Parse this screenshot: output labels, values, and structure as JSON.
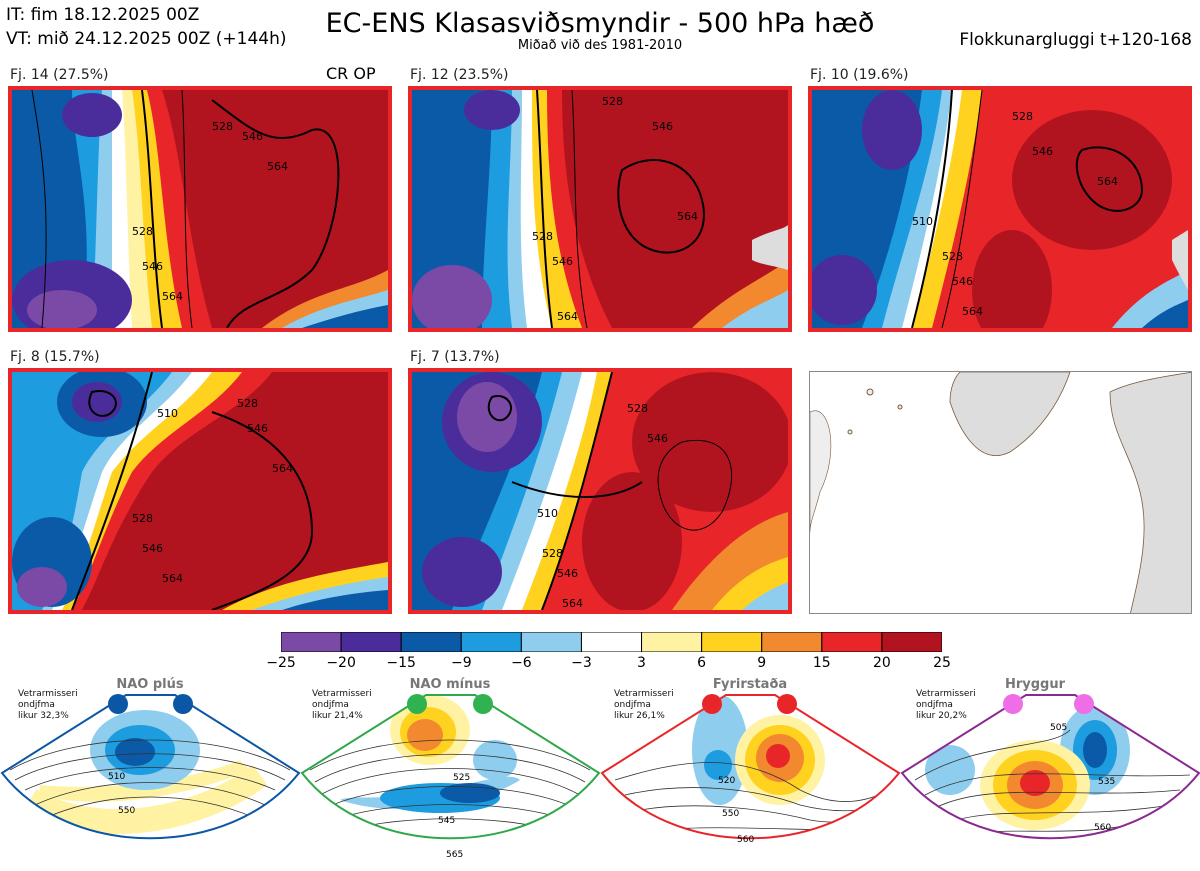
{
  "header": {
    "issue_time": "IT: fim 18.12.2025 00Z",
    "valid_time": "VT: mið 24.12.2025 00Z  (+144h)",
    "title": "EC-ENS Klasasviðsmyndir - 500 hPa hæð",
    "subtitle": "Miðað við des 1981-2010",
    "window": "Flokkunargluggi t+120-168"
  },
  "cr_op": "CR OP",
  "panels": [
    {
      "label": "Fj. 14 (27.5%)",
      "contours": [
        "528",
        "546",
        "564",
        "528",
        "546",
        "564"
      ]
    },
    {
      "label": "Fj. 12 (23.5%)",
      "contours": [
        "528",
        "546",
        "564",
        "528",
        "546",
        "564"
      ]
    },
    {
      "label": "Fj. 10 (19.6%)",
      "contours": [
        "528",
        "546",
        "510",
        "564"
      ]
    },
    {
      "label": "Fj. 8 (15.7%)",
      "contours": [
        "528",
        "546",
        "564",
        "510"
      ]
    },
    {
      "label": "Fj. 7 (13.7%)",
      "contours": [
        "510",
        "528",
        "546",
        "564"
      ]
    }
  ],
  "chart_data": {
    "type": "heatmap",
    "title": "EC-ENS Klasasviðsmyndir - 500 hPa hæð",
    "colorbar": {
      "ticks": [
        "−25",
        "−20",
        "−15",
        "−9",
        "−6",
        "−3",
        "3",
        "6",
        "9",
        "15",
        "20",
        "25"
      ],
      "colors": [
        "#7b4aa6",
        "#4a2d9a",
        "#0b5aa8",
        "#1d9de0",
        "#8ecdee",
        "#ffffff",
        "#fff3a3",
        "#ffd21f",
        "#f2892e",
        "#e8262a",
        "#b2141f"
      ]
    },
    "clusters": [
      {
        "name": "NAO plús",
        "likelihood": "Vetrarmisseri\nondjfma\nlikur 32,3%",
        "likelihood_lines": [
          "Vetrarmisseri",
          "ondjfma",
          "likur 32,3%"
        ],
        "contours": [
          "510",
          "550"
        ],
        "color": "#0b57a5",
        "dot": "#0b57a5"
      },
      {
        "name": "NAO mínus",
        "likelihood_lines": [
          "Vetrarmisseri",
          "ondjfma",
          "likur 21,4%"
        ],
        "contours": [
          "525",
          "545",
          "565"
        ],
        "color": "#2fa84a",
        "dot": "#2fb24f"
      },
      {
        "name": "Fyrirstaða",
        "likelihood_lines": [
          "Vetrarmisseri",
          "ondjfma",
          "likur 26,1%"
        ],
        "contours": [
          "520",
          "550",
          "560"
        ],
        "color": "#e8262a",
        "dot": "#e8262a"
      },
      {
        "name": "Hryggur",
        "likelihood_lines": [
          "Vetrarmisseri",
          "ondjfma",
          "likur 20,2%"
        ],
        "contours": [
          "505",
          "535",
          "560"
        ],
        "color": "#8a2a8f",
        "dot": "#ee6ee8"
      }
    ]
  }
}
